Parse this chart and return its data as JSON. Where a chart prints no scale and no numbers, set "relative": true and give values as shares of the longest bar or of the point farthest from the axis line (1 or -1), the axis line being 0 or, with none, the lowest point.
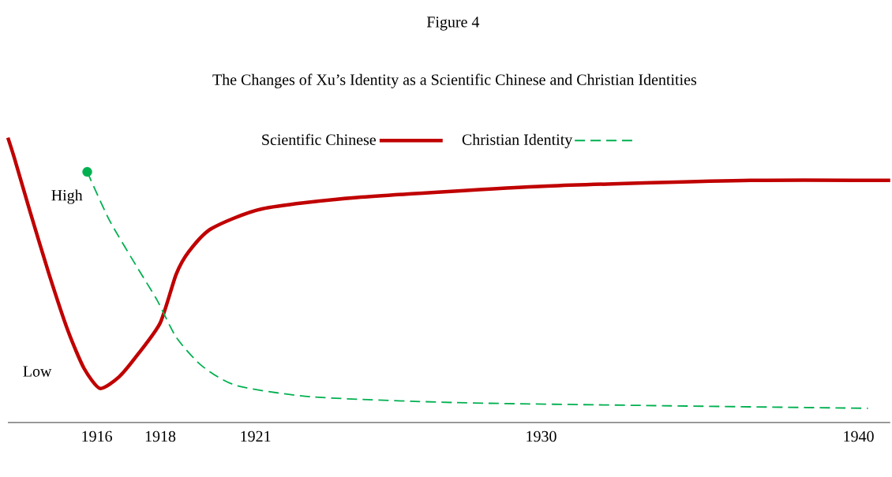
{
  "chart_data": {
    "type": "line",
    "title": "Figure 4",
    "subtitle": "The Changes of Xu’s Identity as a Scientific Chinese and Christian Identities",
    "relative": true,
    "legend": "top",
    "annotations": [
      "High",
      "Low"
    ],
    "xlim": [
      1913.2,
      1941
    ],
    "xticks": [
      1916,
      1918,
      1921,
      1930,
      1940
    ],
    "series": [
      {
        "name": "Scientific Chinese",
        "color": "#c00000",
        "line_style": "solid",
        "x": [
          1913.2,
          1913.4,
          1913.9,
          1914.5,
          1915.1,
          1915.6,
          1916.1,
          1916.7,
          1917.3,
          1918,
          1918.5,
          1918.9,
          1919.6,
          1921.2,
          1924.2,
          1930.2,
          1936.6,
          1941
        ],
        "values": [
          1.0,
          0.93,
          0.74,
          0.52,
          0.32,
          0.19,
          0.12,
          0.16,
          0.24,
          0.35,
          0.52,
          0.6,
          0.68,
          0.75,
          0.79,
          0.83,
          0.85,
          0.85
        ]
      },
      {
        "name": "Christian Identity",
        "color": "#00b050",
        "line_style": "dashed",
        "x": [
          1915.7,
          1916.4,
          1917.3,
          1917.9,
          1918.5,
          1919.3,
          1920.4,
          1922.8,
          1927.3,
          1933.2,
          1940.3
        ],
        "values": [
          0.88,
          0.71,
          0.54,
          0.43,
          0.3,
          0.2,
          0.13,
          0.09,
          0.07,
          0.06,
          0.05
        ]
      },
      {
        "type": "scatter",
        "color": "#00b050",
        "marker": "circle",
        "x": [
          1915.7
        ],
        "values": [
          0.88
        ]
      }
    ]
  }
}
